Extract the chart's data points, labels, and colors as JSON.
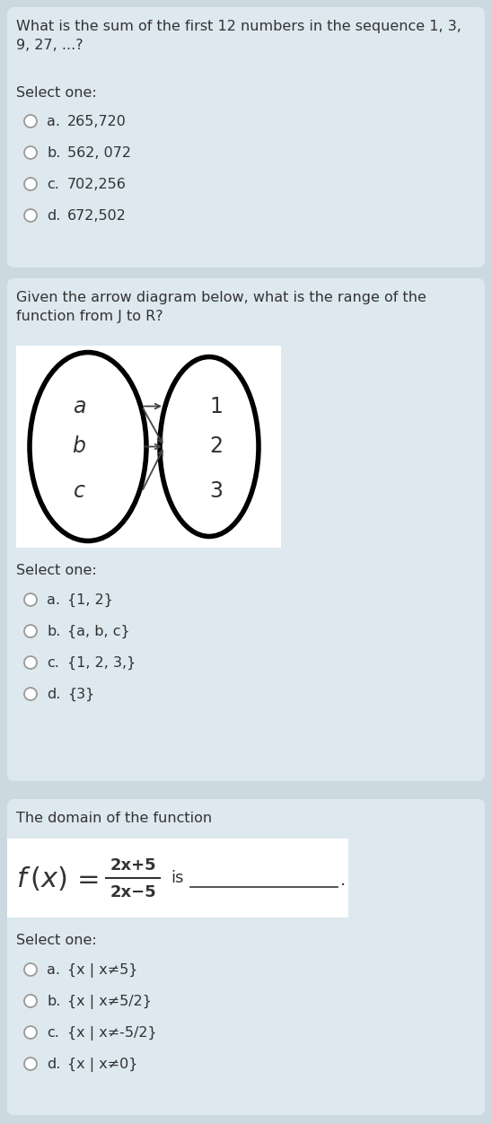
{
  "bg_outer": "#cdd9e0",
  "bg_section": "#dde8ef",
  "white_bg": "#ffffff",
  "text_color": "#333333",
  "section1": {
    "question": "What is the sum of the first 12 numbers in the sequence 1, 3,\n9, 27, ...?",
    "select_one": "Select one:",
    "options": [
      {
        "label": "a.",
        "text": "265,720"
      },
      {
        "label": "b.",
        "text": "562, 072"
      },
      {
        "label": "c.",
        "text": "702,256"
      },
      {
        "label": "d.",
        "text": "672,502"
      }
    ]
  },
  "section2": {
    "question": "Given the arrow diagram below, what is the range of the\nfunction from J to R?",
    "select_one": "Select one:",
    "options": [
      {
        "label": "a.",
        "text": "{1, 2}"
      },
      {
        "label": "b.",
        "text": "{a, b, c}"
      },
      {
        "label": "c.",
        "text": "{1, 2, 3,}"
      },
      {
        "label": "d.",
        "text": "{3}"
      }
    ],
    "left_labels": [
      "a",
      "b",
      "c"
    ],
    "right_labels": [
      "1",
      "2",
      "3"
    ],
    "arrows": [
      [
        0,
        0
      ],
      [
        0,
        1
      ],
      [
        1,
        1
      ],
      [
        2,
        1
      ]
    ]
  },
  "section3": {
    "question": "The domain of the function",
    "numerator": "2x+5",
    "denominator": "2x−5",
    "formula_end": "is",
    "select_one": "Select one:",
    "options": [
      {
        "label": "a.",
        "text": "{x | x≠5}"
      },
      {
        "label": "b.",
        "text": "{x | x≠5/2}"
      },
      {
        "label": "c.",
        "text": "{x | x≠-5/2}"
      },
      {
        "label": "d.",
        "text": "{x | x≠0}"
      }
    ]
  }
}
